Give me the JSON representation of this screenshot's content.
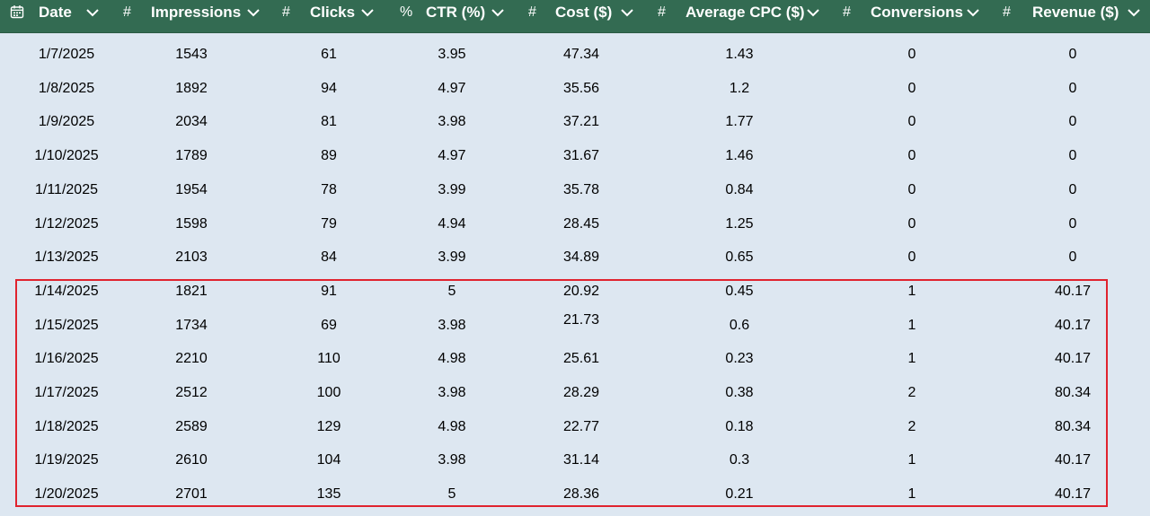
{
  "columns": [
    {
      "key": "date",
      "label": "Date",
      "type_icon": "calendar-icon"
    },
    {
      "key": "impressions",
      "label": "Impressions",
      "type_icon": "#"
    },
    {
      "key": "clicks",
      "label": "Clicks",
      "type_icon": "#"
    },
    {
      "key": "ctr",
      "label": "CTR (%)",
      "type_icon": "%"
    },
    {
      "key": "cost",
      "label": "Cost ($)",
      "type_icon": "#"
    },
    {
      "key": "cpc",
      "label": "Average CPC ($)",
      "type_icon": "#"
    },
    {
      "key": "conversions",
      "label": "Conversions",
      "type_icon": "#"
    },
    {
      "key": "revenue",
      "label": "Revenue ($)",
      "type_icon": "#"
    }
  ],
  "rows": [
    [
      "1/7/2025",
      "1543",
      "61",
      "3.95",
      "47.34",
      "1.43",
      "0",
      "0"
    ],
    [
      "1/8/2025",
      "1892",
      "94",
      "4.97",
      "35.56",
      "1.2",
      "0",
      "0"
    ],
    [
      "1/9/2025",
      "2034",
      "81",
      "3.98",
      "37.21",
      "1.77",
      "0",
      "0"
    ],
    [
      "1/10/2025",
      "1789",
      "89",
      "4.97",
      "31.67",
      "1.46",
      "0",
      "0"
    ],
    [
      "1/11/2025",
      "1954",
      "78",
      "3.99",
      "35.78",
      "0.84",
      "0",
      "0"
    ],
    [
      "1/12/2025",
      "1598",
      "79",
      "4.94",
      "28.45",
      "1.25",
      "0",
      "0"
    ],
    [
      "1/13/2025",
      "2103",
      "84",
      "3.99",
      "34.89",
      "0.65",
      "0",
      "0"
    ],
    [
      "1/14/2025",
      "1821",
      "91",
      "5",
      "20.92",
      "0.45",
      "1",
      "40.17"
    ],
    [
      "1/15/2025",
      "1734",
      "69",
      "3.98",
      "21.73",
      "0.6",
      "1",
      "40.17"
    ],
    [
      "1/16/2025",
      "2210",
      "110",
      "4.98",
      "25.61",
      "0.23",
      "1",
      "40.17"
    ],
    [
      "1/17/2025",
      "2512",
      "100",
      "3.98",
      "28.29",
      "0.38",
      "2",
      "80.34"
    ],
    [
      "1/18/2025",
      "2589",
      "129",
      "4.98",
      "22.77",
      "0.18",
      "2",
      "80.34"
    ],
    [
      "1/19/2025",
      "2610",
      "104",
      "3.98",
      "31.14",
      "0.3",
      "1",
      "40.17"
    ],
    [
      "1/20/2025",
      "2701",
      "135",
      "5",
      "28.36",
      "0.21",
      "1",
      "40.17"
    ]
  ],
  "colors": {
    "header_bg": "#336b52",
    "header_text": "#ffffff",
    "body_bg": "#dde7f1",
    "highlight": "#e0232e"
  }
}
